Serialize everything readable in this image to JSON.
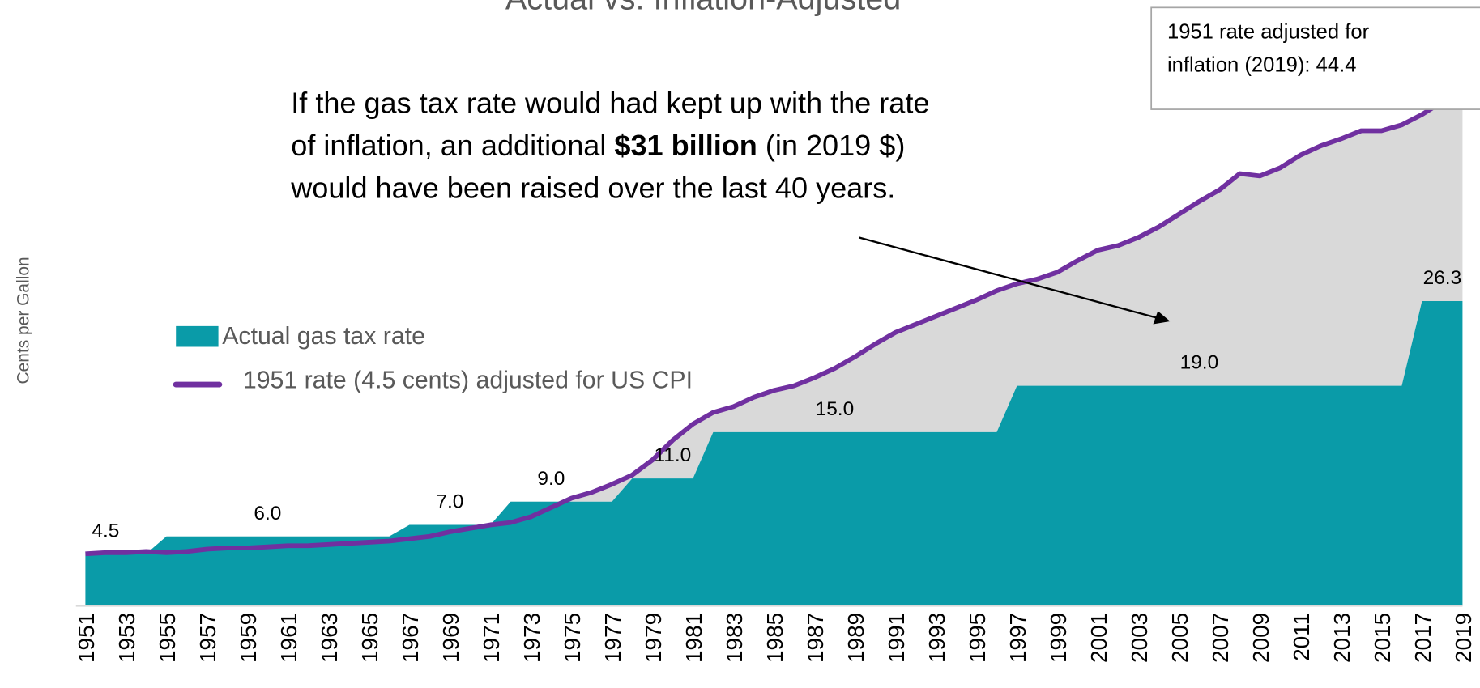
{
  "chart_data": {
    "type": "area-line",
    "title": "Actual vs. Inflation-Adjusted",
    "y_label": "Cents per Gallon",
    "annotation": [
      "If the gas tax rate would had kept up with the rate",
      "of inflation, an additional ",
      "$31 billion",
      " (in 2019 $)",
      "would have been raised over the last 40 years."
    ],
    "callout": [
      "1951 rate adjusted for",
      "inflation (2019): 44.4"
    ],
    "categories": [
      "1951",
      null,
      "1953",
      null,
      "1955",
      null,
      "1957",
      null,
      "1959",
      null,
      "1961",
      null,
      "1963",
      null,
      "1965",
      null,
      "1967",
      null,
      "1969",
      null,
      "1971",
      null,
      "1973",
      null,
      "1975",
      null,
      "1977",
      null,
      "1979",
      null,
      "1981",
      null,
      "1983",
      null,
      "1985",
      null,
      "1987",
      null,
      "1989",
      null,
      "1991",
      null,
      "1993",
      null,
      "1995",
      null,
      "1997",
      null,
      "1999",
      null,
      "2001",
      null,
      "2003",
      null,
      "2005",
      null,
      "2007",
      null,
      "2009",
      null,
      "2011",
      null,
      "2013",
      null,
      "2015",
      null,
      "2017",
      null,
      "2019"
    ],
    "series": [
      {
        "name": "Actual gas tax rate",
        "color": "#0a9ba8",
        "values": [
          4.5,
          4.5,
          4.5,
          4.5,
          6,
          6,
          6,
          6,
          6,
          6,
          6,
          6,
          6,
          6,
          6,
          6,
          7,
          7,
          7,
          7,
          7,
          9,
          9,
          9,
          9,
          9,
          9,
          11,
          11,
          11,
          11,
          15,
          15,
          15,
          15,
          15,
          15,
          15,
          15,
          15,
          15,
          15,
          15,
          15,
          15,
          15,
          19,
          19,
          19,
          19,
          19,
          19,
          19,
          19,
          19,
          19,
          19,
          19,
          19,
          19,
          19,
          19,
          19,
          19,
          19,
          19,
          26.3,
          26.3,
          26.3
        ],
        "value_labels": [
          null,
          "4.5",
          null,
          null,
          null,
          null,
          null,
          null,
          null,
          "6.0",
          null,
          null,
          null,
          null,
          null,
          null,
          null,
          null,
          "7.0",
          null,
          null,
          null,
          null,
          "9.0",
          null,
          null,
          null,
          null,
          null,
          "11.0",
          null,
          null,
          null,
          null,
          null,
          null,
          null,
          "15.0",
          null,
          null,
          null,
          null,
          null,
          null,
          null,
          null,
          null,
          null,
          null,
          null,
          null,
          null,
          null,
          null,
          null,
          "19.0",
          null,
          null,
          null,
          null,
          null,
          null,
          null,
          null,
          null,
          null,
          null,
          "26.3",
          null
        ]
      },
      {
        "name": "1951 rate (4.5 cents) adjusted for US CPI",
        "color": "#7030a0",
        "values": [
          4.5,
          4.6,
          4.6,
          4.7,
          4.6,
          4.7,
          4.9,
          5.0,
          5.0,
          5.1,
          5.2,
          5.2,
          5.3,
          5.4,
          5.5,
          5.6,
          5.8,
          6.0,
          6.4,
          6.7,
          7.0,
          7.2,
          7.7,
          8.5,
          9.3,
          9.8,
          10.5,
          11.3,
          12.6,
          14.3,
          15.7,
          16.7,
          17.2,
          18.0,
          18.6,
          19.0,
          19.7,
          20.5,
          21.5,
          22.6,
          23.6,
          24.3,
          25.0,
          25.7,
          26.4,
          27.2,
          27.8,
          28.2,
          28.8,
          29.8,
          30.7,
          31.1,
          31.8,
          32.7,
          33.8,
          34.9,
          35.9,
          37.3,
          37.1,
          37.8,
          38.9,
          39.7,
          40.3,
          41.0,
          41.0,
          41.5,
          42.4,
          43.5,
          44.4
        ]
      }
    ],
    "gap_color": "#d9d9d9",
    "ylim": [
      0,
      50
    ]
  }
}
